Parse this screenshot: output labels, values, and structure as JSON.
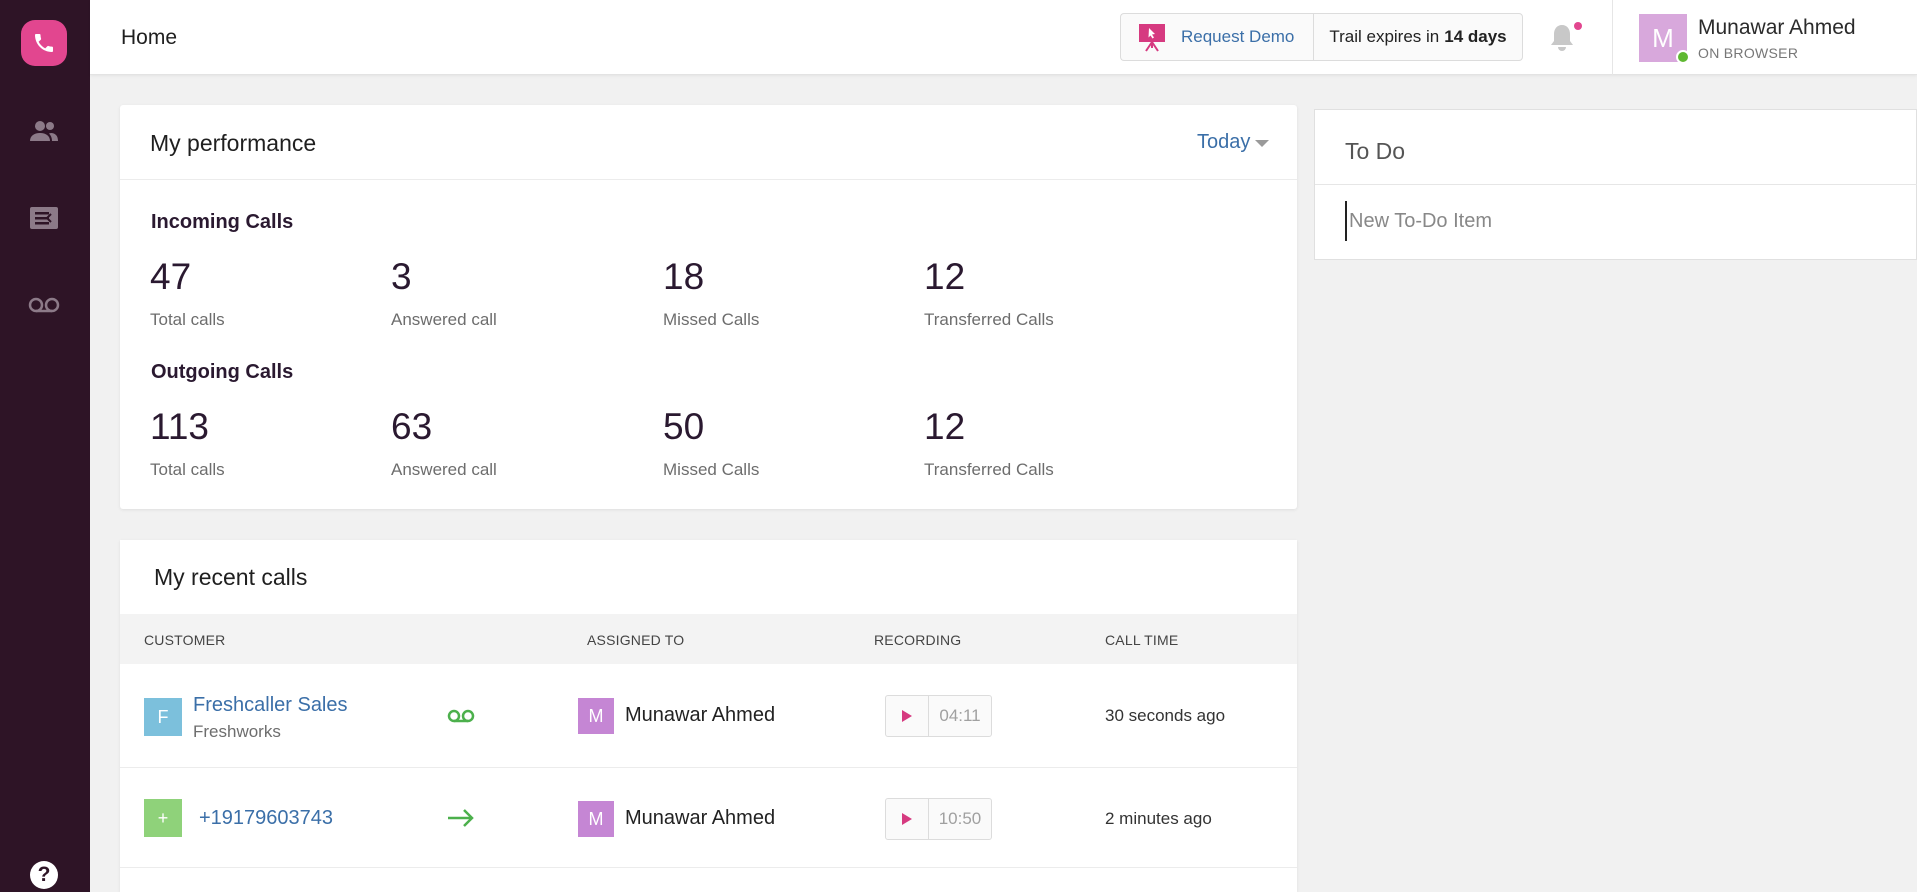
{
  "header": {
    "title": "Home",
    "request_demo": "Request Demo",
    "trial_prefix": "Trail expires in",
    "trial_days": "14 days",
    "user": {
      "name": "Munawar Ahmed",
      "initial": "M",
      "status": "ON BROWSER"
    }
  },
  "sidebar": {
    "items": [
      {
        "icon": "phone-icon"
      },
      {
        "icon": "contacts-icon"
      },
      {
        "icon": "tickets-icon"
      },
      {
        "icon": "voicemail-icon"
      },
      {
        "icon": "help-icon",
        "label": "?"
      }
    ]
  },
  "performance": {
    "title": "My performance",
    "filter": "Today",
    "incoming": {
      "label": "Incoming Calls",
      "stats": [
        {
          "value": "47",
          "label": "Total calls"
        },
        {
          "value": "3",
          "label": "Answered call"
        },
        {
          "value": "18",
          "label": "Missed Calls"
        },
        {
          "value": "12",
          "label": "Transferred Calls"
        }
      ]
    },
    "outgoing": {
      "label": "Outgoing Calls",
      "stats": [
        {
          "value": "113",
          "label": "Total calls"
        },
        {
          "value": "63",
          "label": "Answered call"
        },
        {
          "value": "50",
          "label": "Missed Calls"
        },
        {
          "value": "12",
          "label": "Transferred Calls"
        }
      ]
    }
  },
  "recent_calls": {
    "title": "My recent calls",
    "columns": [
      "CUSTOMER",
      "ASSIGNED TO",
      "RECORDING",
      "CALL TIME"
    ],
    "rows": [
      {
        "customer_initial": "F",
        "customer_name": "Freshcaller Sales",
        "customer_company": "Freshworks",
        "call_icon": "voicemail-icon",
        "assignee_initial": "M",
        "assignee": "Munawar Ahmed",
        "recording_duration": "04:11",
        "call_time": "30 seconds ago"
      },
      {
        "customer_initial": "+",
        "customer_name": "+19179603743",
        "call_icon": "outgoing-arrow-icon",
        "assignee_initial": "M",
        "assignee": "Munawar Ahmed",
        "recording_duration": "10:50",
        "call_time": "2 minutes ago"
      }
    ]
  },
  "todo": {
    "title": "To Do",
    "placeholder": "New To-Do Item"
  },
  "colors": {
    "sidebar_bg": "#2e1426",
    "brand_pink": "#e2468f",
    "link_blue": "#3b6fa8",
    "online_green": "#5fb832",
    "avatar_purple": "#c586d4"
  }
}
